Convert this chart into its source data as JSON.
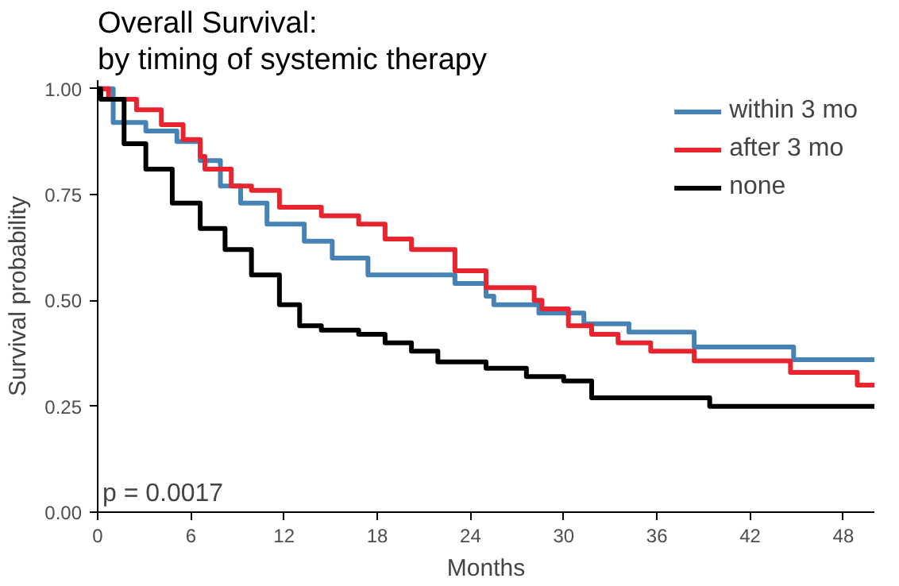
{
  "chart_data": {
    "type": "step",
    "title": "Overall Survival:\n by timing of systemic therapy",
    "xlabel": "Months",
    "ylabel": "Survival probability",
    "xlim": [
      0,
      50
    ],
    "xticks": [
      0,
      6,
      12,
      18,
      24,
      30,
      36,
      42,
      48
    ],
    "ylim": [
      0,
      1.02
    ],
    "yticks": [
      {
        "value": 0,
        "label": "0.00"
      },
      {
        "value": 0.25,
        "label": "0.25"
      },
      {
        "value": 0.5,
        "label": "0.50"
      },
      {
        "value": 0.75,
        "label": "0.75"
      },
      {
        "value": 1,
        "label": "1.00"
      }
    ],
    "grid": false,
    "legend": "top right",
    "annotations": [
      "p = 0.0017"
    ],
    "series": [
      {
        "name": "within 3 mo",
        "color": "#4682b4",
        "x": [
          0,
          1,
          3.1,
          5.1,
          6.6,
          7.9,
          9.2,
          10.9,
          13.3,
          15.1,
          17.4,
          20.2,
          23,
          25,
          25.5,
          28.4,
          31.3,
          34.2,
          38.4,
          44.8,
          50
        ],
        "values": [
          1,
          0.92,
          0.9,
          0.875,
          0.83,
          0.77,
          0.73,
          0.68,
          0.64,
          0.6,
          0.56,
          0.56,
          0.54,
          0.51,
          0.49,
          0.47,
          0.445,
          0.425,
          0.39,
          0.36,
          0.36
        ]
      },
      {
        "name": "after 3 mo",
        "color": "#e8252f",
        "x": [
          0,
          0.7,
          2.5,
          4.1,
          5.5,
          6.6,
          6.9,
          8.6,
          9.9,
          11.7,
          14.4,
          16.8,
          18.5,
          20.2,
          23,
          25,
          28.1,
          28.6,
          30.3,
          31.8,
          33.5,
          35.6,
          38.4,
          44.6,
          48.9,
          50
        ],
        "values": [
          1,
          0.975,
          0.95,
          0.915,
          0.88,
          0.84,
          0.81,
          0.77,
          0.76,
          0.72,
          0.7,
          0.68,
          0.645,
          0.62,
          0.57,
          0.53,
          0.5,
          0.48,
          0.44,
          0.42,
          0.4,
          0.38,
          0.357,
          0.33,
          0.3,
          0.3
        ]
      },
      {
        "name": "none",
        "color": "#000000",
        "x": [
          0,
          0.2,
          1.7,
          3.1,
          4.8,
          6.6,
          8.2,
          9.9,
          11.7,
          13,
          14.4,
          16.8,
          18.5,
          20.2,
          21.9,
          25,
          27.6,
          30,
          31.8,
          39.4,
          50
        ],
        "values": [
          1,
          0.975,
          0.87,
          0.81,
          0.73,
          0.67,
          0.62,
          0.56,
          0.49,
          0.44,
          0.43,
          0.42,
          0.4,
          0.38,
          0.355,
          0.34,
          0.32,
          0.31,
          0.27,
          0.25,
          0.25
        ]
      }
    ]
  }
}
